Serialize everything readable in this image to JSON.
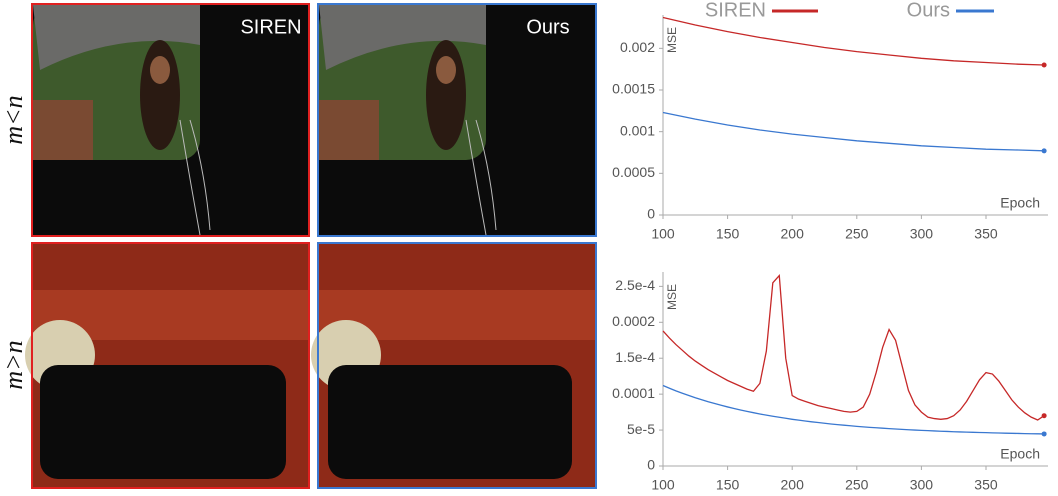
{
  "panels": {
    "row_labels": [
      "m<n",
      "m>n"
    ],
    "column_labels": [
      "SIREN",
      "Ours"
    ]
  },
  "chart_data": [
    {
      "type": "line",
      "x_label": "Epoch",
      "y_label": "MSE",
      "x": [
        100,
        125,
        150,
        175,
        200,
        225,
        250,
        275,
        300,
        325,
        350,
        375,
        395
      ],
      "xlim": [
        100,
        398
      ],
      "xticks": [
        100,
        150,
        200,
        250,
        300,
        350
      ],
      "ylim": [
        0,
        0.0024
      ],
      "yticks": [
        0,
        0.0005,
        0.001,
        0.0015,
        0.002
      ],
      "series": [
        {
          "name": "SIREN",
          "color": "#c62828",
          "values": [
            0.00237,
            0.00228,
            0.0022,
            0.00213,
            0.00207,
            0.00201,
            0.00196,
            0.00192,
            0.00188,
            0.00185,
            0.00183,
            0.00181,
            0.0018
          ]
        },
        {
          "name": "Ours",
          "color": "#3a78d0",
          "values": [
            0.00123,
            0.00115,
            0.00108,
            0.00102,
            0.00097,
            0.00093,
            0.00089,
            0.00086,
            0.00083,
            0.00081,
            0.00079,
            0.00078,
            0.00077
          ]
        }
      ]
    },
    {
      "type": "line",
      "x_label": "Epoch",
      "y_label": "MSE",
      "x": [
        100,
        105,
        110,
        115,
        120,
        125,
        130,
        135,
        140,
        145,
        150,
        155,
        160,
        165,
        170,
        175,
        180,
        185,
        190,
        195,
        200,
        205,
        210,
        215,
        220,
        225,
        230,
        235,
        240,
        245,
        250,
        255,
        260,
        265,
        270,
        275,
        280,
        285,
        290,
        295,
        300,
        305,
        310,
        315,
        320,
        325,
        330,
        335,
        340,
        345,
        350,
        355,
        360,
        365,
        370,
        375,
        380,
        385,
        390,
        395
      ],
      "xlim": [
        100,
        398
      ],
      "xticks": [
        100,
        150,
        200,
        250,
        300,
        350
      ],
      "ylim": [
        0,
        0.00027
      ],
      "yticks": [
        0,
        {
          "value": 5e-05,
          "label": "5e-5"
        },
        0.0001,
        {
          "value": 0.00015,
          "label": "1.5e-4"
        },
        0.0002,
        {
          "value": 0.00025,
          "label": "2.5e-4"
        }
      ],
      "series": [
        {
          "color": "#c62828",
          "values": [
            0.000188,
            0.000178,
            0.000169,
            0.000161,
            0.000153,
            0.000146,
            0.00014,
            0.000134,
            0.000129,
            0.000124,
            0.000119,
            0.000115,
            0.000111,
            0.000107,
            0.000104,
            0.000115,
            0.00016,
            0.000255,
            0.000265,
            0.00015,
            9.8e-05,
            9.3e-05,
            9e-05,
            8.7e-05,
            8.4e-05,
            8.2e-05,
            8e-05,
            7.8e-05,
            7.6e-05,
            7.5e-05,
            7.6e-05,
            8.2e-05,
            0.0001,
            0.00013,
            0.000165,
            0.00019,
            0.000175,
            0.00014,
            0.000105,
            8.5e-05,
            7.5e-05,
            6.8e-05,
            6.6e-05,
            6.5e-05,
            6.6e-05,
            7e-05,
            7.8e-05,
            9e-05,
            0.000105,
            0.00012,
            0.00013,
            0.000128,
            0.000118,
            0.000105,
            9.2e-05,
            8.2e-05,
            7.4e-05,
            6.8e-05,
            6.4e-05,
            7e-05
          ]
        },
        {
          "color": "#3a78d0",
          "values": [
            0.000112,
            0.0001082,
            0.0001046,
            0.0001013,
            9.81e-05,
            9.5e-05,
            9.22e-05,
            8.94e-05,
            8.69e-05,
            8.45e-05,
            8.22e-05,
            8e-05,
            7.79e-05,
            7.6e-05,
            7.42e-05,
            7.24e-05,
            7.08e-05,
            6.92e-05,
            6.78e-05,
            6.64e-05,
            6.5e-05,
            6.38e-05,
            6.26e-05,
            6.15e-05,
            6.05e-05,
            5.95e-05,
            5.85e-05,
            5.76e-05,
            5.68e-05,
            5.6e-05,
            5.52e-05,
            5.45e-05,
            5.38e-05,
            5.32e-05,
            5.26e-05,
            5.2e-05,
            5.15e-05,
            5.1e-05,
            5.05e-05,
            5e-05,
            4.96e-05,
            4.92e-05,
            4.88e-05,
            4.84e-05,
            4.81e-05,
            4.77e-05,
            4.74e-05,
            4.71e-05,
            4.69e-05,
            4.66e-05,
            4.64e-05,
            4.61e-05,
            4.59e-05,
            4.57e-05,
            4.55e-05,
            4.53e-05,
            4.51e-05,
            4.49e-05,
            4.48e-05,
            4.46e-05
          ]
        }
      ]
    }
  ]
}
